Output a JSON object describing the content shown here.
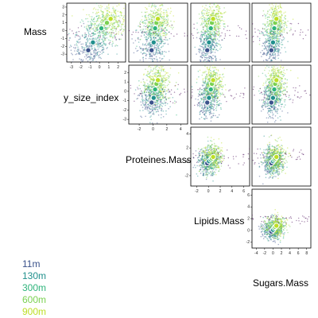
{
  "chart_data": {
    "type": "scatter",
    "title": "",
    "layout": "upper-triangle scatterplot matrix",
    "variables": [
      "Mass",
      "y_size_index",
      "Proteines.Mass",
      "Lipids.Mass",
      "Sugars.Mass"
    ],
    "ticks": {
      "Mass": [
        -3,
        -2,
        -1,
        0,
        1,
        2,
        3
      ],
      "y_size_index": [
        -3,
        -2,
        -1,
        0,
        1,
        2
      ],
      "Proteines.Mass": [
        -2,
        0,
        2,
        4
      ],
      "Lipids.Mass": [
        -2,
        0,
        2,
        4,
        6
      ],
      "Sugars.Mass": [
        -4,
        -2,
        0,
        2,
        4,
        6,
        8
      ]
    },
    "ranges": {
      "Mass": [
        -4,
        3.5
      ],
      "y_size_index": [
        -3.5,
        2.8
      ],
      "Proteines.Mass": [
        -3.5,
        5
      ],
      "Lipids.Mass": [
        -3,
        7
      ],
      "Sugars.Mass": [
        -5,
        9
      ]
    },
    "series": [
      {
        "name": "11m",
        "color": "#3b528b",
        "centroid": {
          "Mass": -2.5,
          "y_size_index": -1.2,
          "Proteines.Mass": -0.2,
          "Lipids.Mass": -0.2,
          "Sugars.Mass": -0.4
        }
      },
      {
        "name": "130m",
        "color": "#21908d",
        "centroid": {
          "Mass": -1.5,
          "y_size_index": -0.7,
          "Proteines.Mass": 0.1,
          "Lipids.Mass": 0.1,
          "Sugars.Mass": 0.0
        }
      },
      {
        "name": "300m",
        "color": "#2fb47c",
        "centroid": {
          "Mass": 0.3,
          "y_size_index": 0.2,
          "Proteines.Mass": 0.3,
          "Lipids.Mass": 0.4,
          "Sugars.Mass": 0.3
        }
      },
      {
        "name": "600m",
        "color": "#7ad151",
        "centroid": {
          "Mass": 1.0,
          "y_size_index": 0.8,
          "Proteines.Mass": 0.5,
          "Lipids.Mass": 0.6,
          "Sugars.Mass": 0.5
        }
      },
      {
        "name": "900m",
        "color": "#bddf26",
        "centroid": {
          "Mass": 1.5,
          "y_size_index": 1.2,
          "Proteines.Mass": 0.7,
          "Lipids.Mass": 0.8,
          "Sugars.Mass": 0.8
        }
      }
    ],
    "grid": false,
    "legend_position": "bottom-left"
  }
}
